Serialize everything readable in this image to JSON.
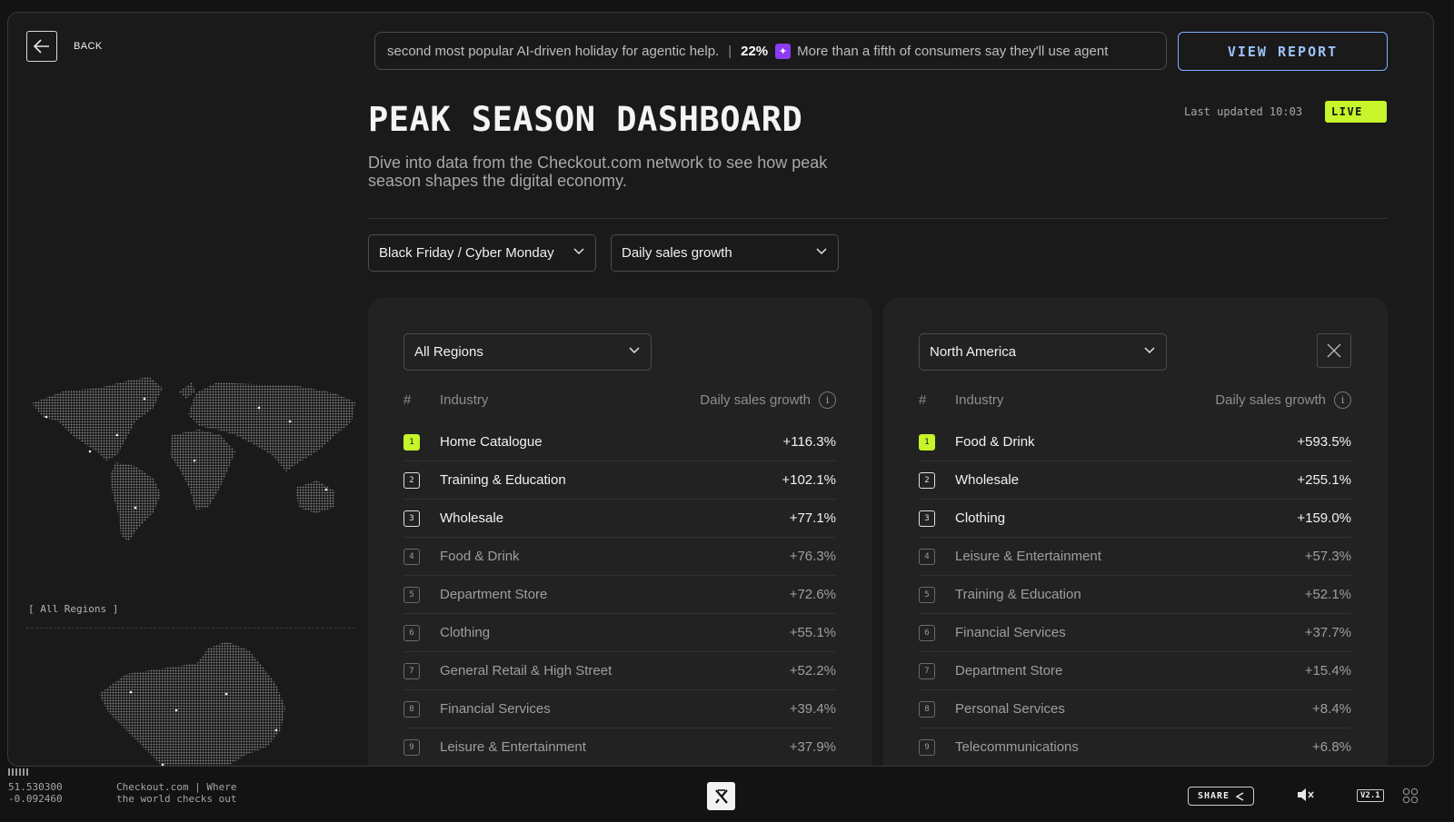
{
  "nav": {
    "back_label": "BACK"
  },
  "ticker": {
    "lead_text": "second most popular AI-driven holiday for agentic help.",
    "stat": "22%",
    "stat_icon": "sparkle-icon",
    "stat_text": "More than a fifth of consumers say they'll use agent"
  },
  "header": {
    "view_report_label": "VIEW REPORT",
    "title": "PEAK SEASON DASHBOARD",
    "last_updated": "Last updated 10:03",
    "live_label": "LIVE",
    "subtitle": "Dive into data from the Checkout.com network to see how peak season shapes the digital economy."
  },
  "filters": {
    "period": "Black Friday / Cyber Monday",
    "metric": "Daily sales growth"
  },
  "map": {
    "region_caption": "[ All Regions ]"
  },
  "table_headers": {
    "rank": "#",
    "industry": "Industry",
    "metric": "Daily sales growth"
  },
  "panel_left": {
    "region": "All Regions",
    "rows": [
      {
        "rank": "1",
        "name": "Home Catalogue",
        "value": "+116.3%"
      },
      {
        "rank": "2",
        "name": "Training & Education",
        "value": "+102.1%"
      },
      {
        "rank": "3",
        "name": "Wholesale",
        "value": "+77.1%"
      },
      {
        "rank": "4",
        "name": "Food & Drink",
        "value": "+76.3%"
      },
      {
        "rank": "5",
        "name": "Department Store",
        "value": "+72.6%"
      },
      {
        "rank": "6",
        "name": "Clothing",
        "value": "+55.1%"
      },
      {
        "rank": "7",
        "name": "General Retail & High Street",
        "value": "+52.2%"
      },
      {
        "rank": "8",
        "name": "Financial Services",
        "value": "+39.4%"
      },
      {
        "rank": "9",
        "name": "Leisure & Entertainment",
        "value": "+37.9%"
      }
    ]
  },
  "panel_right": {
    "region": "North America",
    "rows": [
      {
        "rank": "1",
        "name": "Food & Drink",
        "value": "+593.5%"
      },
      {
        "rank": "2",
        "name": "Wholesale",
        "value": "+255.1%"
      },
      {
        "rank": "3",
        "name": "Clothing",
        "value": "+159.0%"
      },
      {
        "rank": "4",
        "name": "Leisure & Entertainment",
        "value": "+57.3%"
      },
      {
        "rank": "5",
        "name": "Training & Education",
        "value": "+52.1%"
      },
      {
        "rank": "6",
        "name": "Financial Services",
        "value": "+37.7%"
      },
      {
        "rank": "7",
        "name": "Department Store",
        "value": "+15.4%"
      },
      {
        "rank": "8",
        "name": "Personal Services",
        "value": "+8.4%"
      },
      {
        "rank": "9",
        "name": "Telecommunications",
        "value": "+6.8%"
      }
    ]
  },
  "footer": {
    "lat": "51.530300",
    "lng": "-0.092460",
    "tagline": "Checkout.com | Where the world checks out",
    "share_label": "SHARE",
    "version": "V2.1"
  },
  "colors": {
    "accent": "#c5f52a",
    "link": "#9cc3ff",
    "spark": "#8b3cf5"
  }
}
